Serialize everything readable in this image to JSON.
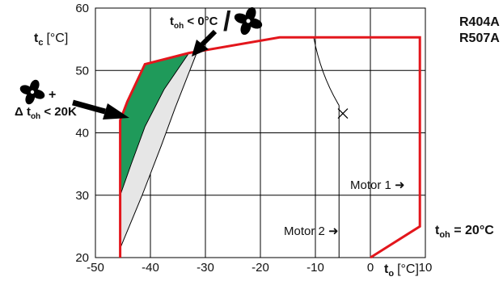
{
  "chart_data": {
    "type": "area",
    "x_axis": {
      "label_main": "t",
      "label_sub": "o",
      "label_unit": "[°C]",
      "range": [
        -50,
        10
      ],
      "ticks": [
        -50,
        -40,
        -30,
        -20,
        -10,
        0,
        10
      ]
    },
    "y_axis": {
      "label_main": "t",
      "label_sub": "c",
      "label_unit": "[°C]",
      "range": [
        20,
        60
      ],
      "ticks": [
        20,
        30,
        40,
        50,
        60
      ]
    },
    "grid": true,
    "refrigerants": [
      "R404A",
      "R507A"
    ],
    "envelope_boundary": {
      "color": "#e3161c",
      "points": [
        [
          -45.5,
          20
        ],
        [
          -45.5,
          21.5
        ],
        [
          -45.5,
          42
        ],
        [
          -44.2,
          45
        ],
        [
          -41,
          51
        ],
        [
          -33,
          52.8
        ],
        [
          -16.5,
          55.3
        ],
        [
          9,
          55.3
        ],
        [
          9,
          25
        ],
        [
          0,
          20
        ]
      ]
    },
    "region_fan_and_superheat_limit": {
      "color": "#1f9a5a",
      "points": [
        [
          -45.5,
          42
        ],
        [
          -44.2,
          45
        ],
        [
          -41,
          51
        ],
        [
          -33,
          52.8
        ],
        [
          -37.5,
          47
        ],
        [
          -41,
          41
        ],
        [
          -43.5,
          35
        ],
        [
          -45.5,
          30
        ]
      ]
    },
    "region_fan_or_low_superheat": {
      "color": "#e6e6e6",
      "boundary_inner": [
        [
          -45.5,
          30
        ],
        [
          -43.5,
          35
        ],
        [
          -41,
          41
        ],
        [
          -37.5,
          47
        ],
        [
          -33,
          52.8
        ]
      ],
      "boundary_outer": [
        [
          -45.5,
          21.5
        ],
        [
          -41.5,
          30
        ],
        [
          -38,
          38
        ],
        [
          -35.5,
          44
        ],
        [
          -33.5,
          48.5
        ],
        [
          -31.5,
          53
        ]
      ]
    },
    "motor_lines": [
      {
        "x": -5.7,
        "y_from": 20,
        "y_to": 44.4,
        "label": "Motor 2 ➜"
      },
      {
        "x": 9,
        "y_from": 25,
        "y_to": 55.3,
        "label": "Motor 1 ➜"
      }
    ],
    "motor2_upper_curve": [
      [
        -10.3,
        55.3
      ],
      [
        -9.5,
        51.5
      ],
      [
        -8,
        47.8
      ],
      [
        -5.7,
        44.4
      ]
    ],
    "marker": {
      "x": -5,
      "y": 43.1,
      "symbol": "×"
    },
    "annotations": {
      "top_text": "t",
      "top_sub": "oh",
      "top_rest": " < 0°C",
      "top_slash": "/",
      "left_plus": "+",
      "left_delta": "Δ t",
      "left_sub": "oh",
      "left_rest": " < 20K",
      "right_t": "t",
      "right_sub": "oh",
      "right_rest": " = 20°C"
    },
    "icons": [
      "fan-icon-top",
      "fan-icon-left"
    ]
  }
}
